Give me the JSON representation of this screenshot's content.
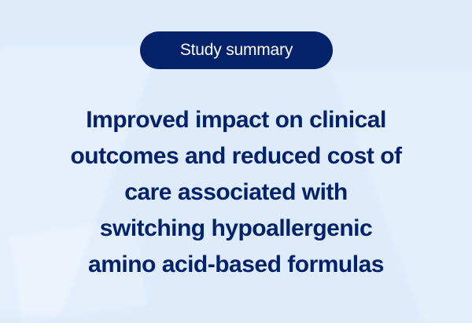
{
  "colors": {
    "background": "#deebfb",
    "accent": "#03226a",
    "badge_text": "#ffffff"
  },
  "badge": {
    "label": "Study summary"
  },
  "title": {
    "lines": [
      "Improved impact on clinical",
      "outcomes and reduced cost of",
      "care associated with",
      "switching hypoallergenic",
      "amino acid-based formulas"
    ]
  }
}
